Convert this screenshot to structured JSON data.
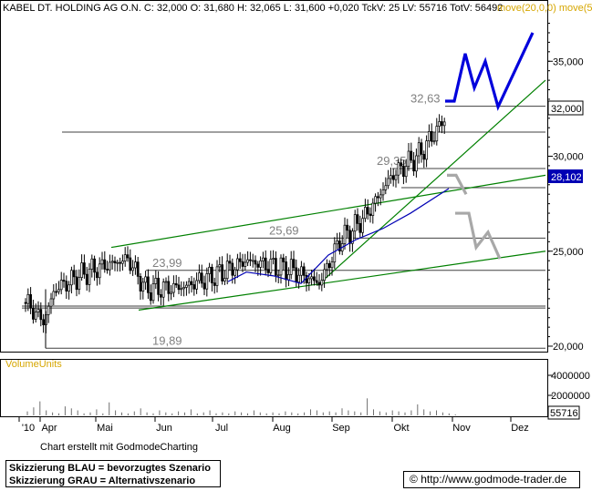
{
  "header": {
    "text": "KABEL DT. HOLDING AG O.N. C: 32,000 O: 31,680 H: 32,065 L: 31,600 +0,020 TckV: 25 LV: 55716 TotV: 56492",
    "indicator": "move(20,0,0) move(5"
  },
  "credit": "Chart erstellt mit GodmodeCharting",
  "legend": {
    "blue": "Skizzierung BLAU = bevorzugtes Szenario",
    "gray": "Skizzierung GRAU = Alternativszenario"
  },
  "source": {
    "symbol": "©",
    "url": "http://www.godmode-trader.de"
  },
  "colors": {
    "candles": "#000000",
    "ma": "#0000b4",
    "trend": "#008000",
    "level": "#404040",
    "scenario_blue": "#0000dc",
    "scenario_gray": "#a8a8a8",
    "indicator": "#d6a600"
  },
  "chart_data": [
    {
      "type": "candlestick",
      "title": "KABEL DT. HOLDING AG O.N.",
      "x_ticks": [
        "'10",
        "Apr",
        "Mai",
        "Jun",
        "Jul",
        "Aug",
        "Sep",
        "Okt",
        "Nov",
        "Dez"
      ],
      "y_ticks": [
        "20,000",
        "25,000",
        "30,000",
        "35,000"
      ],
      "ylim": [
        19.7,
        37
      ],
      "last_price": "32,000",
      "moving_average_last": "28,102",
      "levels": [
        {
          "value": 32.63,
          "label": "32,63"
        },
        {
          "value": 29.35,
          "label": "29,35"
        },
        {
          "value": 25.69,
          "label": "25,69"
        },
        {
          "value": 23.99,
          "label": "23,99"
        },
        {
          "value": 19.89,
          "label": "19,89"
        }
      ],
      "support_lines": [
        22.2,
        22.3
      ],
      "close_path": [
        [
          "'10",
          22.3
        ],
        [
          "Apr",
          21.3
        ],
        [
          "Apr",
          23.0
        ],
        [
          "Mai",
          24.0
        ],
        [
          "Mai",
          24.6
        ],
        [
          "Jun",
          23.0
        ],
        [
          "Jun",
          23.1
        ],
        [
          "Jul",
          23.8
        ],
        [
          "Jul",
          24.5
        ],
        [
          "Aug",
          24.0
        ],
        [
          "Aug",
          23.3
        ],
        [
          "Sep",
          25.5
        ],
        [
          "Sep",
          26.8
        ],
        [
          "Okt",
          29.0
        ],
        [
          "Okt",
          30.1
        ],
        [
          "Okt",
          32.0
        ]
      ],
      "moving_average_path": [
        [
          "Jul",
          23.4
        ],
        [
          "Aug",
          23.6
        ],
        [
          "Sep",
          24.8
        ],
        [
          "Okt",
          27.2
        ],
        [
          "Okt",
          28.1
        ]
      ],
      "trend_channel": {
        "upper": [
          [
            "Mai",
            25.2
          ],
          [
            "Nov",
            29.0
          ]
        ],
        "lower": [
          [
            "Mai",
            21.9
          ],
          [
            "Nov",
            25.0
          ]
        ],
        "steep": [
          [
            "Aug",
            23.2
          ],
          [
            "Nov",
            34.0
          ]
        ]
      },
      "scenario_blue": [
        32.9,
        32.9,
        35.4,
        33.6,
        35.0,
        32.6,
        36.5
      ],
      "scenario_gray": [
        29.0,
        29.0,
        28.3,
        27.0,
        27.0,
        25.1,
        25.8,
        24.8
      ]
    },
    {
      "type": "bar",
      "title": "VolumeUnits",
      "y_ticks": [
        "2000000",
        "4000000"
      ],
      "last_volume": "55716",
      "ylim": [
        0,
        4000000
      ],
      "values": [
        400000,
        800000,
        1400000,
        500000,
        300000,
        200000,
        900000,
        700000,
        500000,
        200000,
        300000,
        600000,
        200000,
        1300000,
        500000,
        300000,
        200000,
        400000,
        700000,
        300000,
        200000,
        500000,
        300000,
        200000,
        400000,
        300000,
        600000,
        200000,
        300000,
        500000,
        200000,
        300000,
        200000,
        400000,
        300000,
        200000,
        500000,
        300000,
        200000,
        300000,
        200000,
        400000,
        300000,
        200000,
        300000,
        600000,
        500000,
        300000,
        400000,
        300000,
        700000,
        500000,
        400000,
        300000,
        1700000,
        600000,
        400000,
        300000,
        500000,
        400000,
        300000,
        500000,
        1100000,
        600000,
        400000,
        500000,
        300000,
        200000,
        100000
      ]
    }
  ]
}
